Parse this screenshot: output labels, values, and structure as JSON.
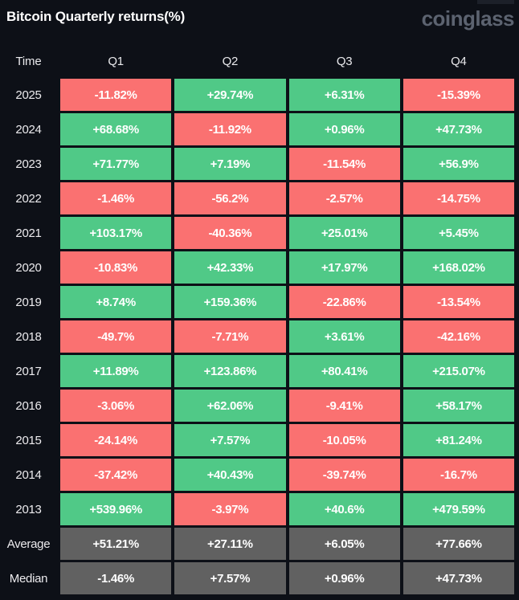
{
  "header": {
    "title": "Bitcoin Quarterly returns(%)",
    "logo_text": "coinglass"
  },
  "colors": {
    "background": "#0d1017",
    "positive": "#50c987",
    "negative": "#fa7171",
    "summary": "#616161",
    "cell_text": "#ffffff",
    "label_text": "#ecebee",
    "logo_text": "#5c6370"
  },
  "table": {
    "columns": [
      "Time",
      "Q1",
      "Q2",
      "Q3",
      "Q4"
    ],
    "rows": [
      {
        "label": "2025",
        "kind": "data",
        "cells": [
          "-11.82%",
          "+29.74%",
          "+6.31%",
          "-15.39%"
        ]
      },
      {
        "label": "2024",
        "kind": "data",
        "cells": [
          "+68.68%",
          "-11.92%",
          "+0.96%",
          "+47.73%"
        ]
      },
      {
        "label": "2023",
        "kind": "data",
        "cells": [
          "+71.77%",
          "+7.19%",
          "-11.54%",
          "+56.9%"
        ]
      },
      {
        "label": "2022",
        "kind": "data",
        "cells": [
          "-1.46%",
          "-56.2%",
          "-2.57%",
          "-14.75%"
        ]
      },
      {
        "label": "2021",
        "kind": "data",
        "cells": [
          "+103.17%",
          "-40.36%",
          "+25.01%",
          "+5.45%"
        ]
      },
      {
        "label": "2020",
        "kind": "data",
        "cells": [
          "-10.83%",
          "+42.33%",
          "+17.97%",
          "+168.02%"
        ]
      },
      {
        "label": "2019",
        "kind": "data",
        "cells": [
          "+8.74%",
          "+159.36%",
          "-22.86%",
          "-13.54%"
        ]
      },
      {
        "label": "2018",
        "kind": "data",
        "cells": [
          "-49.7%",
          "-7.71%",
          "+3.61%",
          "-42.16%"
        ]
      },
      {
        "label": "2017",
        "kind": "data",
        "cells": [
          "+11.89%",
          "+123.86%",
          "+80.41%",
          "+215.07%"
        ]
      },
      {
        "label": "2016",
        "kind": "data",
        "cells": [
          "-3.06%",
          "+62.06%",
          "-9.41%",
          "+58.17%"
        ]
      },
      {
        "label": "2015",
        "kind": "data",
        "cells": [
          "-24.14%",
          "+7.57%",
          "-10.05%",
          "+81.24%"
        ]
      },
      {
        "label": "2014",
        "kind": "data",
        "cells": [
          "-37.42%",
          "+40.43%",
          "-39.74%",
          "-16.7%"
        ]
      },
      {
        "label": "2013",
        "kind": "data",
        "cells": [
          "+539.96%",
          "-3.97%",
          "+40.6%",
          "+479.59%"
        ]
      },
      {
        "label": "Average",
        "kind": "summary",
        "cells": [
          "+51.21%",
          "+27.11%",
          "+6.05%",
          "+77.66%"
        ]
      },
      {
        "label": "Median",
        "kind": "summary",
        "cells": [
          "-1.46%",
          "+7.57%",
          "+0.96%",
          "+47.73%"
        ]
      }
    ]
  },
  "chart_data": {
    "type": "table",
    "title": "Bitcoin Quarterly returns(%)",
    "columns": [
      "Q1",
      "Q2",
      "Q3",
      "Q4"
    ],
    "rows": [
      {
        "time": "2025",
        "values": [
          -11.82,
          29.74,
          6.31,
          -15.39
        ]
      },
      {
        "time": "2024",
        "values": [
          68.68,
          -11.92,
          0.96,
          47.73
        ]
      },
      {
        "time": "2023",
        "values": [
          71.77,
          7.19,
          -11.54,
          56.9
        ]
      },
      {
        "time": "2022",
        "values": [
          -1.46,
          -56.2,
          -2.57,
          -14.75
        ]
      },
      {
        "time": "2021",
        "values": [
          103.17,
          -40.36,
          25.01,
          5.45
        ]
      },
      {
        "time": "2020",
        "values": [
          -10.83,
          42.33,
          17.97,
          168.02
        ]
      },
      {
        "time": "2019",
        "values": [
          8.74,
          159.36,
          -22.86,
          -13.54
        ]
      },
      {
        "time": "2018",
        "values": [
          -49.7,
          -7.71,
          3.61,
          -42.16
        ]
      },
      {
        "time": "2017",
        "values": [
          11.89,
          123.86,
          80.41,
          215.07
        ]
      },
      {
        "time": "2016",
        "values": [
          -3.06,
          62.06,
          -9.41,
          58.17
        ]
      },
      {
        "time": "2015",
        "values": [
          -24.14,
          7.57,
          -10.05,
          81.24
        ]
      },
      {
        "time": "2014",
        "values": [
          -37.42,
          40.43,
          -39.74,
          -16.7
        ]
      },
      {
        "time": "2013",
        "values": [
          539.96,
          -3.97,
          40.6,
          479.59
        ]
      },
      {
        "time": "Average",
        "values": [
          51.21,
          27.11,
          6.05,
          77.66
        ]
      },
      {
        "time": "Median",
        "values": [
          -1.46,
          7.57,
          0.96,
          47.73
        ]
      }
    ],
    "color_coding": "green = positive return, red = negative return, gray = summary rows (Average/Median)",
    "units": "percent"
  }
}
